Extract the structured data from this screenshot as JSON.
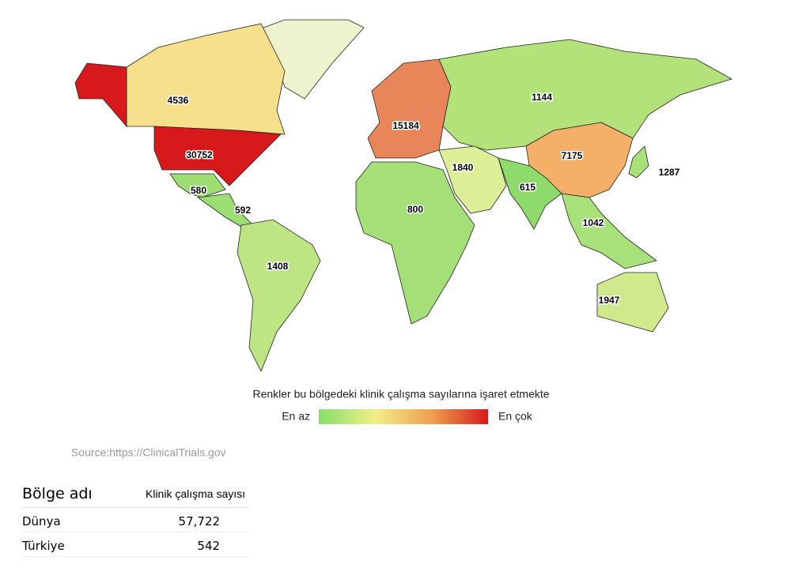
{
  "map": {
    "regions": [
      {
        "label": 4536,
        "color": "#f6e08c"
      },
      {
        "label": 30752,
        "color": "#d7191c"
      },
      {
        "label": 15184,
        "color": "#e8865a"
      },
      {
        "label": 1144,
        "color": "#b3e27a"
      },
      {
        "label": 7175,
        "color": "#f3b066"
      },
      {
        "label": 1287,
        "color": "#a9e07a"
      },
      {
        "label": 1840,
        "color": "#dcee96"
      },
      {
        "label": 615,
        "color": "#8edb6c"
      },
      {
        "label": 800,
        "color": "#a5df78"
      },
      {
        "label": 580,
        "color": "#9cde74"
      },
      {
        "label": 592,
        "color": "#9cde74"
      },
      {
        "label": 1408,
        "color": "#bde584"
      },
      {
        "label": 1042,
        "color": "#a8e07a"
      },
      {
        "label": 1947,
        "color": "#cfe98c"
      }
    ],
    "legend": {
      "title": "Renkler bu bölgedeki klinik çalışma sayılarına işaret etmekte",
      "low": "En az",
      "high": "En çok",
      "colors": [
        "#84e06a",
        "#f2ee88",
        "#f0a050",
        "#d7191c"
      ]
    }
  },
  "source": "Source:https://ClinicalTrials.gov",
  "table": {
    "headers": [
      "Bölge adı",
      "Klinik çalışma sayısı"
    ],
    "rows": [
      [
        "Dünya",
        "57,722"
      ],
      [
        "Türkiye",
        "542"
      ]
    ]
  }
}
